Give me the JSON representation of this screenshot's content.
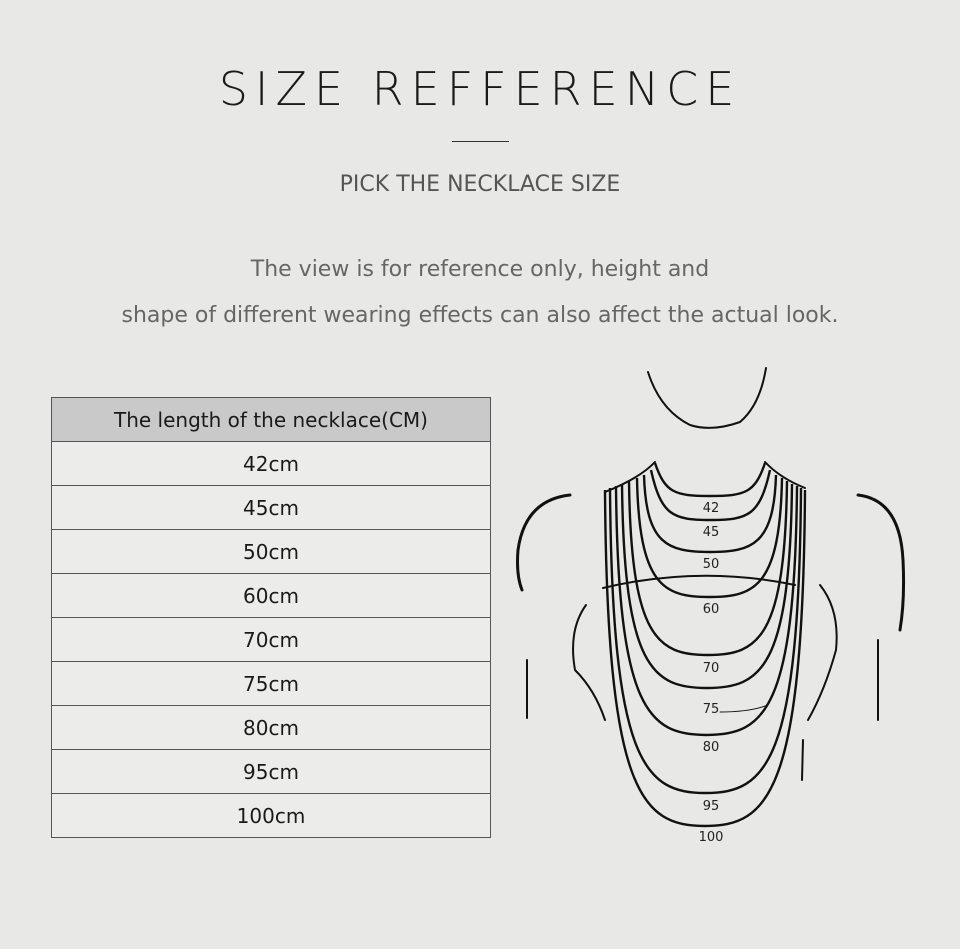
{
  "title": "SIZE REFFERENCE",
  "subtitle": "PICK THE NECKLACE SIZE",
  "description": [
    "The view is for reference only, height and",
    "shape of different wearing effects can also affect the actual look."
  ],
  "table": {
    "header": "The length of the necklace(CM)",
    "rows": [
      "42cm",
      "45cm",
      "50cm",
      "60cm",
      "70cm",
      "75cm",
      "80cm",
      "95cm",
      "100cm"
    ]
  },
  "diagram": {
    "labels": [
      "42",
      "45",
      "50",
      "60",
      "70",
      "75",
      "80",
      "95",
      "100"
    ]
  }
}
